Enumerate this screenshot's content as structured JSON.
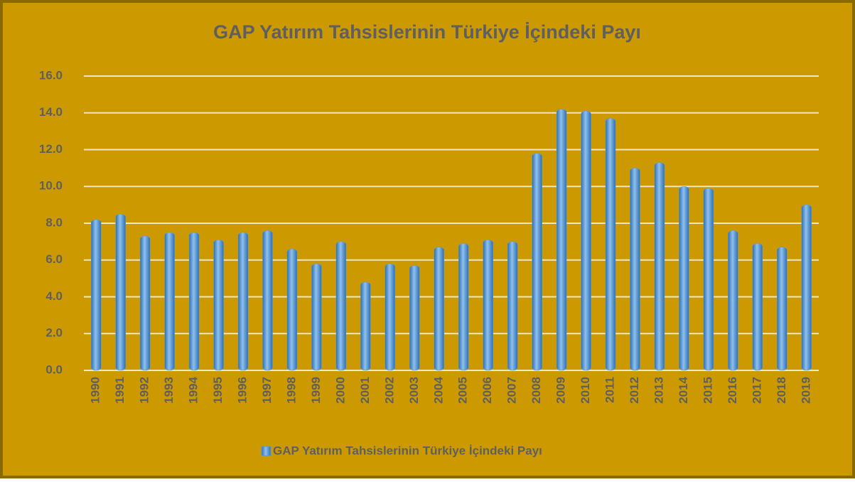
{
  "chart_data": {
    "type": "bar",
    "title": "GAP Yatırım Tahsislerinin Türkiye İçindeki Payı",
    "categories": [
      "1990",
      "1991",
      "1992",
      "1993",
      "1994",
      "1995",
      "1996",
      "1997",
      "1998",
      "1999",
      "2000",
      "2001",
      "2002",
      "2003",
      "2004",
      "2005",
      "2006",
      "2007",
      "2008",
      "2009",
      "2010",
      "2011",
      "2012",
      "2013",
      "2014",
      "2015",
      "2016",
      "2017",
      "2018",
      "2019"
    ],
    "series": [
      {
        "name": "GAP Yatırım Tahsislerinin Türkiye İçindeki Payı",
        "color": "#5b9bd5",
        "values": [
          8.2,
          8.5,
          7.3,
          7.5,
          7.5,
          7.1,
          7.5,
          7.6,
          6.6,
          5.8,
          7.0,
          4.8,
          5.8,
          5.7,
          6.7,
          6.9,
          7.1,
          7.0,
          11.8,
          14.2,
          14.1,
          13.7,
          11.0,
          11.3,
          10.0,
          9.9,
          7.6,
          6.9,
          6.7,
          9.0
        ]
      }
    ],
    "ylim": [
      0,
      16
    ],
    "yticks": [
      {
        "value": 0,
        "label": "0.0"
      },
      {
        "value": 2,
        "label": "2.0"
      },
      {
        "value": 4,
        "label": "4.0"
      },
      {
        "value": 6,
        "label": "6.0"
      },
      {
        "value": 8,
        "label": "8.0"
      },
      {
        "value": 10,
        "label": "10.0"
      },
      {
        "value": 12,
        "label": "12.0"
      },
      {
        "value": 14,
        "label": "14.0"
      },
      {
        "value": 16,
        "label": "16.0"
      }
    ],
    "grid": true,
    "legend": "bottom"
  }
}
